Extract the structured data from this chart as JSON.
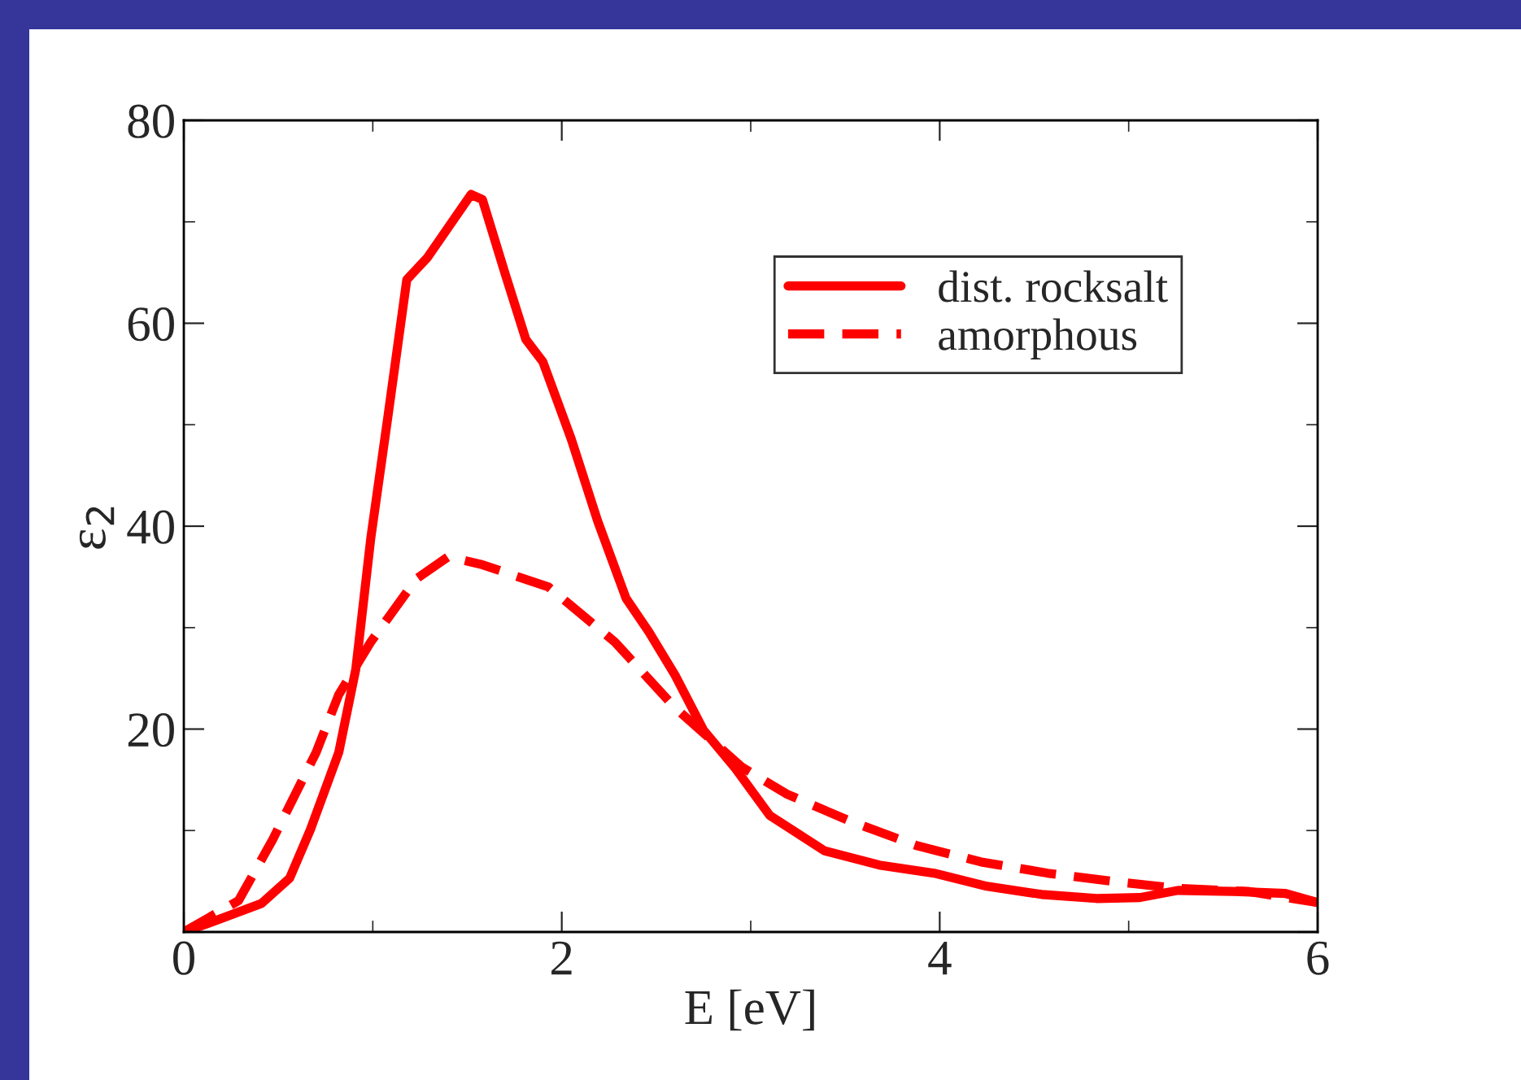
{
  "chart_data": {
    "type": "line",
    "xlabel": "E [eV]",
    "ylabel": "ε$_{2}$",
    "xlim": [
      0,
      6
    ],
    "xticks": [
      0,
      2,
      4,
      6
    ],
    "ylim": [
      0,
      80
    ],
    "yticks": [
      {
        "value": 0,
        "label": null
      },
      20,
      40,
      60,
      80
    ],
    "grid": false,
    "legend": "top right",
    "marker": "none",
    "series": [
      {
        "name": "dist. rocksalt",
        "color": "#ff0000",
        "line_style": "solid",
        "x": [
          0,
          0.18,
          0.41,
          0.56,
          0.67,
          0.82,
          0.91,
          0.99,
          1.08,
          1.18,
          1.29,
          1.52,
          1.58,
          1.7,
          1.81,
          1.9,
          2.05,
          2.19,
          2.34,
          2.46,
          2.6,
          2.75,
          2.92,
          3.1,
          3.39,
          3.68,
          3.97,
          4.25,
          4.54,
          4.83,
          5.06,
          5.26,
          5.55,
          5.83,
          6.0
        ],
        "values": [
          0,
          1.2,
          2.8,
          5.3,
          10.1,
          17.7,
          25.9,
          38.9,
          50.8,
          64.3,
          66.5,
          72.7,
          72.2,
          64.9,
          58.4,
          56.2,
          48.6,
          40.5,
          32.9,
          29.6,
          25.3,
          19.9,
          16.1,
          11.5,
          8.0,
          6.6,
          5.8,
          4.5,
          3.7,
          3.3,
          3.4,
          4.1,
          4.0,
          3.8,
          2.9
        ]
      },
      {
        "name": "amorphous",
        "color": "#ff0000",
        "line_style": "dashed",
        "x": [
          0,
          0.29,
          0.47,
          0.7,
          0.82,
          0.99,
          1.23,
          1.4,
          1.58,
          1.93,
          2.28,
          2.6,
          2.95,
          3.19,
          3.53,
          3.88,
          4.22,
          4.57,
          4.91,
          5.26,
          5.63,
          6.0
        ],
        "values": [
          0,
          3.1,
          9.1,
          17.7,
          23.4,
          28.6,
          34.8,
          37.0,
          36.2,
          34.0,
          28.6,
          22.1,
          16.3,
          13.6,
          10.9,
          8.5,
          6.9,
          5.8,
          5.0,
          4.3,
          4.0,
          2.9
        ]
      }
    ]
  }
}
